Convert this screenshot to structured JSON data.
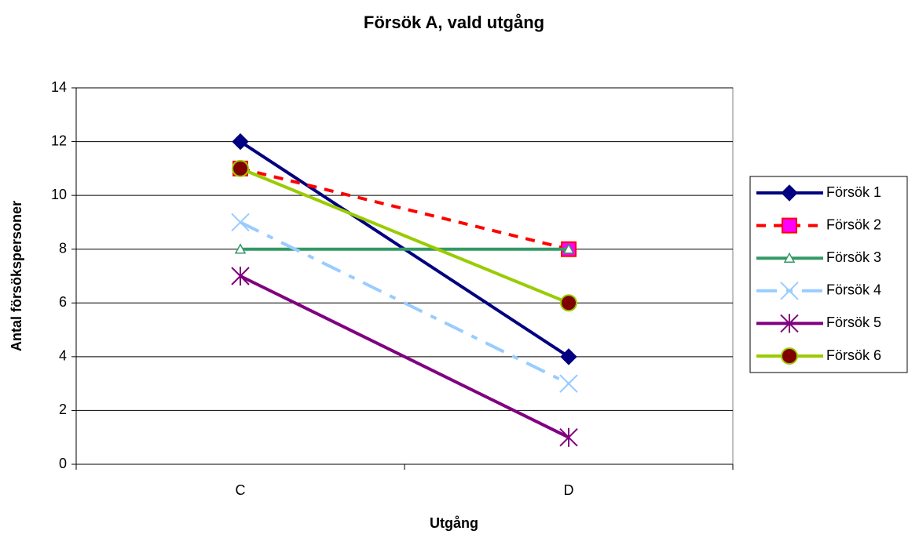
{
  "chart_data": {
    "type": "line",
    "title": "Försök A, vald utgång",
    "xlabel": "Utgång",
    "ylabel": "Antal försökspersoner",
    "categories": [
      "C",
      "D"
    ],
    "ylim": [
      0,
      14
    ],
    "yticks": [
      0,
      2,
      4,
      6,
      8,
      10,
      12,
      14
    ],
    "grid": true,
    "legend": "right",
    "series": [
      {
        "name": "Försök 1",
        "color": "#000080",
        "values": [
          12,
          4
        ],
        "marker": "diamond",
        "marker_fill": "#000080",
        "dash": "solid"
      },
      {
        "name": "Försök 2",
        "color": "#ff0000",
        "values": [
          11,
          8
        ],
        "marker": "square",
        "marker_fill": "#ff00ff",
        "dash": "dashed"
      },
      {
        "name": "Försök 3",
        "color": "#339966",
        "values": [
          8,
          8
        ],
        "marker": "triangle",
        "marker_fill": "none",
        "dash": "solid"
      },
      {
        "name": "Försök 4",
        "color": "#99ccff",
        "values": [
          9,
          3
        ],
        "marker": "x",
        "marker_fill": "none",
        "dash": "dashdot"
      },
      {
        "name": "Försök 5",
        "color": "#800080",
        "values": [
          7,
          1
        ],
        "marker": "star",
        "marker_fill": "none",
        "dash": "solid"
      },
      {
        "name": "Försök 6",
        "color": "#99cc00",
        "values": [
          11,
          6
        ],
        "marker": "circle",
        "marker_fill": "#800000",
        "dash": "solid"
      }
    ]
  }
}
